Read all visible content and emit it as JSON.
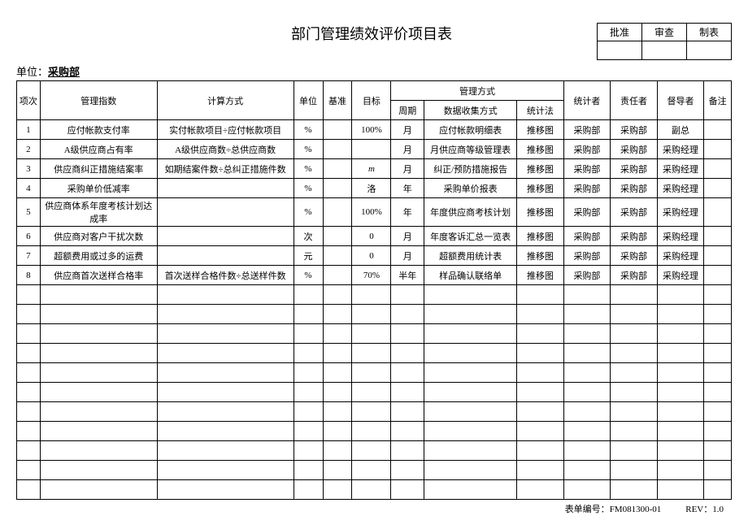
{
  "title": "部门管理绩效评价项目表",
  "approval": {
    "approve": "批准",
    "review": "审查",
    "prepare": "制表"
  },
  "unit_label": "单位：",
  "unit_value": "采购部",
  "headers": {
    "idx": "项次",
    "metric": "管理指数",
    "formula": "计算方式",
    "unit": "单位",
    "baseline": "基准",
    "target": "目标",
    "mgmt": "管理方式",
    "period": "周期",
    "collect": "数据收集方式",
    "statmethod": "统计法",
    "statistician": "统计者",
    "responsible": "责任者",
    "supervisor": "督导者",
    "remark": "备注"
  },
  "rows": [
    {
      "idx": "1",
      "metric": "应付帐款支付率",
      "formula": "实付帐款项目÷应付帐款项目",
      "unit": "%",
      "baseline": "",
      "target": "100%",
      "period": "月",
      "collect": "应付帐款明细表",
      "statmethod": "推移图",
      "statistician": "采购部",
      "responsible": "采购部",
      "supervisor": "副总",
      "remark": ""
    },
    {
      "idx": "2",
      "metric": "A级供应商占有率",
      "formula": "A级供应商数÷总供应商数",
      "unit": "%",
      "baseline": "",
      "target": "",
      "period": "月",
      "collect": "月供应商等级管理表",
      "statmethod": "推移图",
      "statistician": "采购部",
      "responsible": "采购部",
      "supervisor": "采购经理",
      "remark": ""
    },
    {
      "idx": "3",
      "metric": "供应商纠正措施结案率",
      "formula": "如期结案件数÷总纠正措施件数",
      "unit": "%",
      "baseline": "",
      "target": "m",
      "target_italic": true,
      "period": "月",
      "collect": "纠正/预防措施报告",
      "statmethod": "推移图",
      "statistician": "采购部",
      "responsible": "采购部",
      "supervisor": "采购经理",
      "remark": ""
    },
    {
      "idx": "4",
      "metric": "采购单价低减率",
      "formula": "",
      "unit": "%",
      "baseline": "",
      "target": "洛",
      "period": "年",
      "collect": "采购单价报表",
      "statmethod": "推移图",
      "statistician": "采购部",
      "responsible": "采购部",
      "supervisor": "采购经理",
      "remark": ""
    },
    {
      "idx": "5",
      "metric": "供应商体系年度考核计划达成率",
      "formula": "",
      "unit": "%",
      "baseline": "",
      "target": "100%",
      "period": "年",
      "collect": "年度供应商考核计划",
      "statmethod": "推移图",
      "statistician": "采购部",
      "responsible": "采购部",
      "supervisor": "采购经理",
      "remark": ""
    },
    {
      "idx": "6",
      "metric": "供应商对客户干扰次数",
      "formula": "",
      "unit": "次",
      "baseline": "",
      "target": "0",
      "period": "月",
      "collect": "年度客诉汇总一览表",
      "statmethod": "推移图",
      "statistician": "采购部",
      "responsible": "采购部",
      "supervisor": "采购经理",
      "remark": ""
    },
    {
      "idx": "7",
      "metric": "超额费用或过多的运费",
      "formula": "",
      "unit": "元",
      "baseline": "",
      "target": "0",
      "period": "月",
      "collect": "超额费用统计表",
      "statmethod": "推移图",
      "statistician": "采购部",
      "responsible": "采购部",
      "supervisor": "采购经理",
      "remark": ""
    },
    {
      "idx": "8",
      "metric": "供应商首次送样合格率",
      "formula": "首次送样合格件数÷总送样件数",
      "unit": "%",
      "baseline": "",
      "target": "70%",
      "period": "半年",
      "collect": "样品确认联络单",
      "statmethod": "推移图",
      "statistician": "采购部",
      "responsible": "采购部",
      "supervisor": "采购经理",
      "remark": ""
    }
  ],
  "empty_rows": 11,
  "footer": {
    "form_no_label": "表单编号：",
    "form_no": "FM081300-01",
    "rev_label": "REV：",
    "rev": "1.0"
  }
}
